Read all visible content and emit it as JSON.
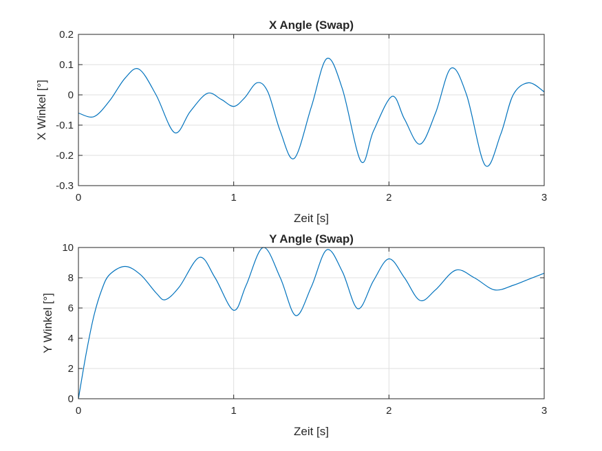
{
  "chart_data": [
    {
      "type": "line",
      "title": "X Angle (Swap)",
      "xlabel": "Zeit [s]",
      "ylabel": "X Winkel [°]",
      "xlim": [
        0,
        3
      ],
      "ylim": [
        -0.3,
        0.2
      ],
      "xticks": [
        0,
        1,
        2,
        3
      ],
      "xtick_labels": [
        "0",
        "1",
        "2",
        "3"
      ],
      "yticks": [
        -0.3,
        -0.2,
        -0.1,
        0,
        0.1,
        0.2
      ],
      "ytick_labels": [
        "-0.3",
        "-0.2",
        "-0.1",
        "0",
        "0.1",
        "0.2"
      ],
      "grid": true,
      "color": "#0072bd",
      "series": [
        {
          "x": [
            0,
            0.1,
            0.2,
            0.3,
            0.39,
            0.5,
            0.62,
            0.72,
            0.83,
            0.92,
            1.0,
            1.07,
            1.15,
            1.22,
            1.3,
            1.39,
            1.5,
            1.6,
            1.7,
            1.82,
            1.9,
            2.02,
            2.1,
            2.2,
            2.3,
            2.4,
            2.5,
            2.62,
            2.72,
            2.8,
            2.9,
            3.0
          ],
          "y": [
            -0.06,
            -0.072,
            -0.02,
            0.055,
            0.085,
            0.0,
            -0.125,
            -0.055,
            0.005,
            -0.015,
            -0.038,
            -0.01,
            0.04,
            0.01,
            -0.12,
            -0.21,
            -0.04,
            0.12,
            0.02,
            -0.22,
            -0.12,
            -0.005,
            -0.08,
            -0.163,
            -0.06,
            0.088,
            0.0,
            -0.233,
            -0.13,
            0.0,
            0.04,
            0.01
          ]
        }
      ]
    },
    {
      "type": "line",
      "title": "Y Angle (Swap)",
      "xlabel": "Zeit [s]",
      "ylabel": "Y Winkel [°]",
      "xlim": [
        0,
        3
      ],
      "ylim": [
        0,
        10
      ],
      "xticks": [
        0,
        1,
        2,
        3
      ],
      "xtick_labels": [
        "0",
        "1",
        "2",
        "3"
      ],
      "yticks": [
        0,
        2,
        4,
        6,
        8,
        10
      ],
      "ytick_labels": [
        "0",
        "2",
        "4",
        "6",
        "8",
        "10"
      ],
      "grid": true,
      "color": "#0072bd",
      "series": [
        {
          "x": [
            0,
            0.05,
            0.1,
            0.15,
            0.2,
            0.3,
            0.4,
            0.5,
            0.56,
            0.65,
            0.78,
            0.88,
            1.0,
            1.08,
            1.19,
            1.3,
            1.4,
            1.5,
            1.6,
            1.7,
            1.8,
            1.9,
            2.0,
            2.1,
            2.2,
            2.3,
            2.43,
            2.55,
            2.68,
            2.8,
            2.9,
            3.0
          ],
          "y": [
            0,
            3.0,
            5.5,
            7.2,
            8.2,
            8.75,
            8.2,
            7.0,
            6.55,
            7.4,
            9.35,
            8.0,
            5.85,
            7.5,
            10.0,
            8.0,
            5.5,
            7.4,
            9.85,
            8.4,
            5.95,
            7.8,
            9.25,
            8.0,
            6.5,
            7.2,
            8.5,
            8.0,
            7.2,
            7.5,
            7.9,
            8.3
          ]
        }
      ]
    }
  ]
}
